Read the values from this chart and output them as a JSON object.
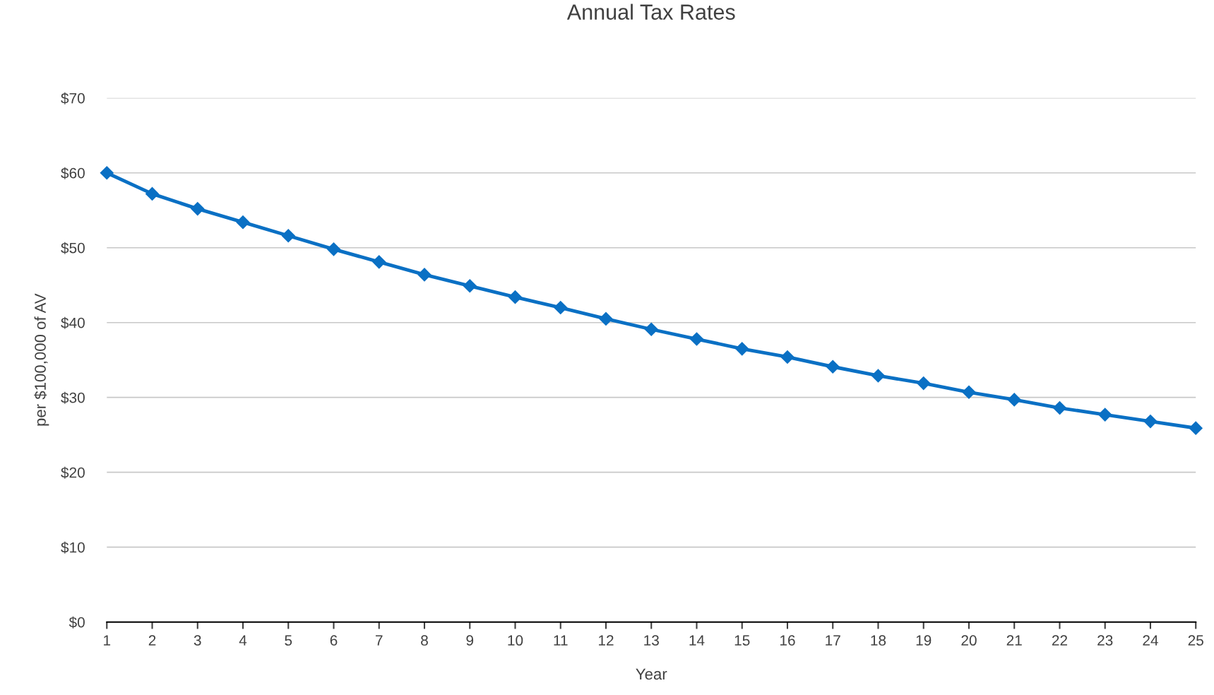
{
  "chart_data": {
    "type": "line",
    "title": "Annual Tax Rates",
    "xlabel": "Year",
    "ylabel": "per $100,000 of AV",
    "categories": [
      "1",
      "2",
      "3",
      "4",
      "5",
      "6",
      "7",
      "8",
      "9",
      "10",
      "11",
      "12",
      "13",
      "14",
      "15",
      "16",
      "17",
      "18",
      "19",
      "20",
      "21",
      "22",
      "23",
      "24",
      "25"
    ],
    "series": [
      {
        "color": "#0a70c4",
        "values": [
          60.0,
          57.2,
          55.2,
          53.4,
          51.6,
          49.8,
          48.1,
          46.4,
          44.9,
          43.4,
          42.0,
          40.5,
          39.1,
          37.8,
          36.5,
          35.4,
          34.1,
          32.9,
          31.9,
          30.7,
          29.7,
          28.6,
          27.7,
          26.8,
          25.9
        ]
      }
    ],
    "ylim": [
      0,
      70
    ],
    "yticks": [
      {
        "value": 0,
        "label": "$0"
      },
      {
        "value": 10,
        "label": "$10"
      },
      {
        "value": 20,
        "label": "$20"
      },
      {
        "value": 30,
        "label": "$30"
      },
      {
        "value": 40,
        "label": "$40"
      },
      {
        "value": 50,
        "label": "$50"
      },
      {
        "value": 60,
        "label": "$60"
      },
      {
        "value": 70,
        "label": "$70"
      }
    ],
    "grid": "y",
    "marker": "diamond",
    "line_style": "solid"
  }
}
